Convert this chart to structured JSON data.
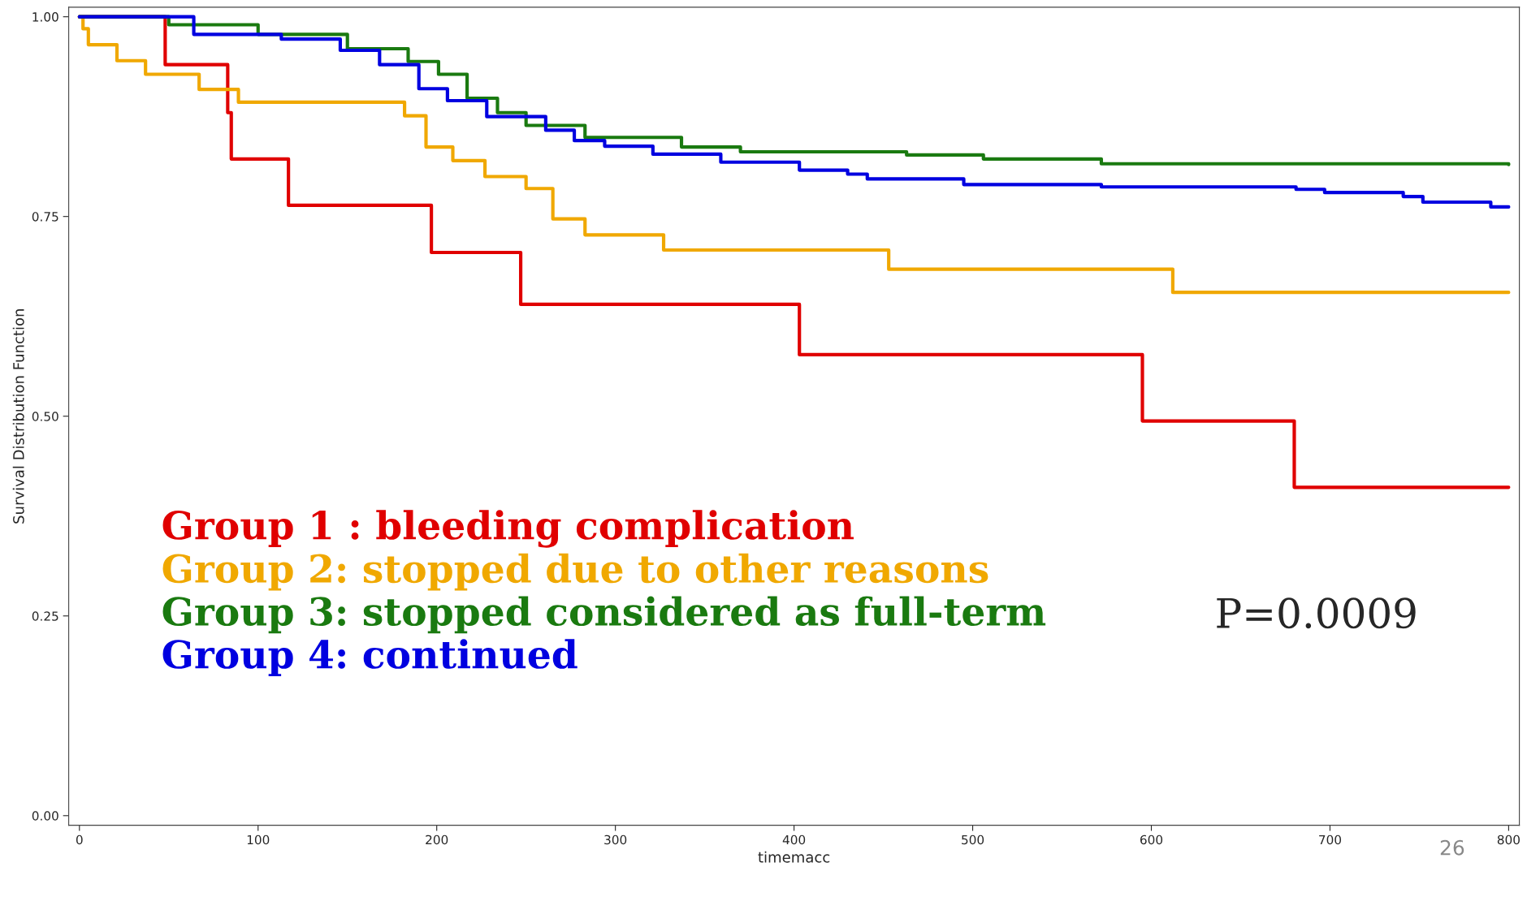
{
  "chart_data": {
    "type": "step",
    "xlabel": "timemacc",
    "ylabel": "Survival Distribution Function",
    "xlim": [
      -6,
      806
    ],
    "ylim": [
      -0.012,
      1.012
    ],
    "xticks": [
      0,
      100,
      200,
      300,
      400,
      500,
      600,
      700,
      800
    ],
    "yticks": [
      {
        "value": 0,
        "label": "0.00"
      },
      {
        "value": 0.25,
        "label": "0.25"
      },
      {
        "value": 0.5,
        "label": "0.50"
      },
      {
        "value": 0.75,
        "label": "0.75"
      },
      {
        "value": 1,
        "label": "1.00"
      }
    ],
    "grid": false,
    "legend": "bottom left",
    "series": [
      {
        "name": "Group 1 : bleeding complication",
        "color": "#e00000",
        "x": [
          0,
          48,
          83,
          85,
          117,
          197,
          247,
          403,
          595,
          680,
          800
        ],
        "values": [
          1.0,
          0.94,
          0.88,
          0.822,
          0.764,
          0.705,
          0.64,
          0.577,
          0.494,
          0.411,
          0.411
        ]
      },
      {
        "name": "Group 2: stopped due to other reasons",
        "color": "#f0a800",
        "x": [
          0,
          2,
          5,
          21,
          37,
          67,
          89,
          182,
          194,
          209,
          227,
          250,
          265,
          283,
          327,
          453,
          612,
          800
        ],
        "values": [
          1.0,
          0.985,
          0.965,
          0.945,
          0.928,
          0.909,
          0.893,
          0.876,
          0.837,
          0.82,
          0.8,
          0.785,
          0.747,
          0.727,
          0.708,
          0.684,
          0.655,
          0.655
        ]
      },
      {
        "name": "Group 3: stopped considered as full-term",
        "color": "#1a7a10",
        "x": [
          0,
          50,
          100,
          150,
          184,
          201,
          217,
          234,
          250,
          283,
          337,
          370,
          463,
          506,
          572,
          800
        ],
        "values": [
          1.0,
          0.99,
          0.978,
          0.96,
          0.944,
          0.928,
          0.898,
          0.88,
          0.864,
          0.849,
          0.837,
          0.831,
          0.827,
          0.822,
          0.816,
          0.815
        ]
      },
      {
        "name": "Group 4: continued",
        "color": "#0000e0",
        "x": [
          0,
          64,
          113,
          146,
          168,
          190,
          206,
          228,
          261,
          277,
          294,
          321,
          359,
          403,
          430,
          441,
          495,
          572,
          681,
          697,
          741,
          752,
          790,
          800
        ],
        "values": [
          1.0,
          0.978,
          0.972,
          0.958,
          0.94,
          0.91,
          0.895,
          0.875,
          0.858,
          0.845,
          0.838,
          0.828,
          0.818,
          0.808,
          0.803,
          0.797,
          0.79,
          0.787,
          0.784,
          0.78,
          0.775,
          0.768,
          0.762,
          0.762
        ]
      }
    ],
    "annotations": [
      "P=0.0009",
      "26"
    ]
  }
}
